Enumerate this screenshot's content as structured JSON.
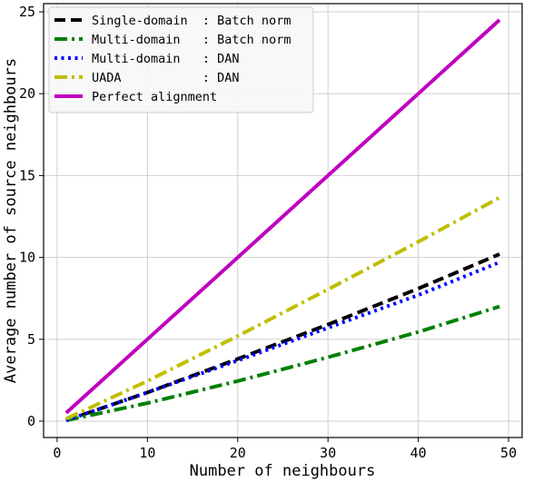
{
  "chart_data": {
    "type": "line",
    "title": "",
    "xlabel": "Number of neighbours",
    "ylabel": "Average number of source neighbours",
    "xlim": [
      -1.5,
      51.5
    ],
    "ylim": [
      -1,
      25.5
    ],
    "xticks": [
      0,
      10,
      20,
      30,
      40,
      50
    ],
    "yticks": [
      0,
      5,
      10,
      15,
      20,
      25
    ],
    "grid": true,
    "legend_position": "top-left",
    "x": [
      1,
      10,
      20,
      30,
      40,
      49
    ],
    "series": [
      {
        "name": "Single-domain  : Batch norm",
        "color": "#000000",
        "dash": "dashed",
        "values": [
          0.05,
          1.75,
          3.8,
          5.9,
          8.1,
          10.2
        ]
      },
      {
        "name": "Multi-domain   : Batch norm",
        "color": "#008000",
        "dash": "dashdot",
        "values": [
          0.05,
          1.1,
          2.45,
          3.9,
          5.45,
          7.0
        ]
      },
      {
        "name": "Multi-domain   : DAN",
        "color": "#0000ff",
        "dash": "dotted",
        "values": [
          0.05,
          1.75,
          3.7,
          5.7,
          7.7,
          9.7
        ]
      },
      {
        "name": "UADA           : DAN",
        "color": "#bfbf00",
        "dash": "dashdot",
        "values": [
          0.15,
          2.45,
          5.2,
          8.05,
          10.95,
          13.65
        ]
      },
      {
        "name": "Perfect alignment",
        "color": "#bf00bf",
        "dash": "solid",
        "values": [
          0.5,
          5,
          10,
          15,
          20,
          24.5
        ]
      }
    ]
  }
}
